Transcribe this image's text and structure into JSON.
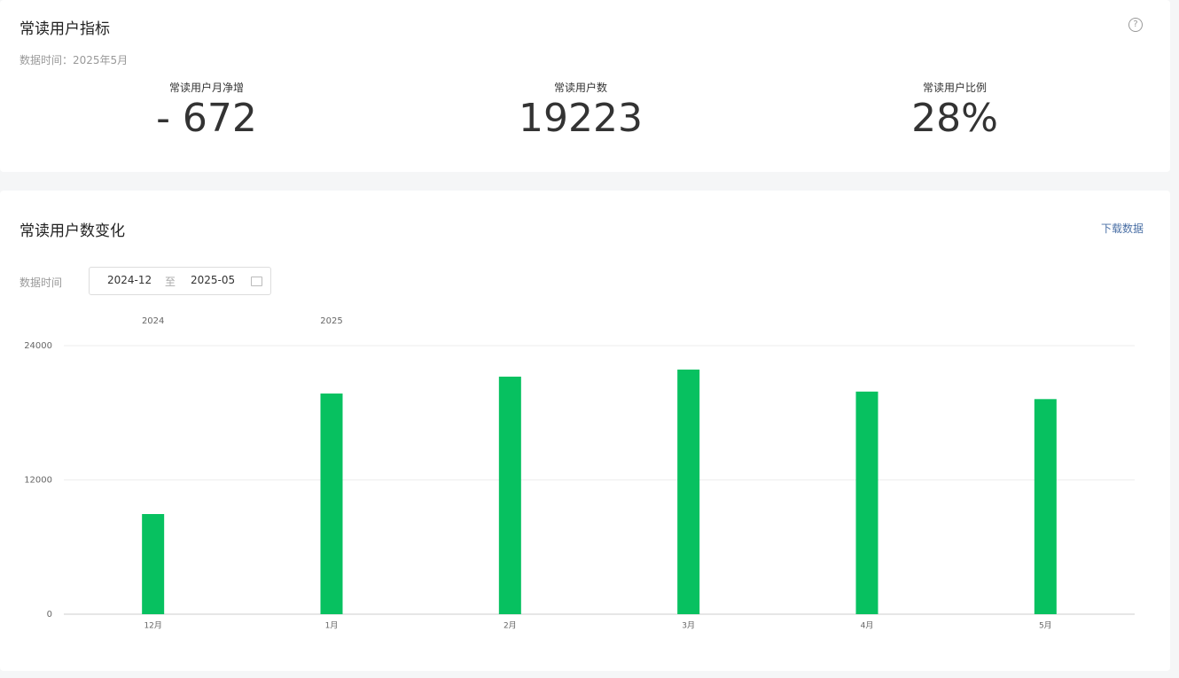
{
  "header": {
    "title": "常读用户指标",
    "subtitle": "数据时间：2025年5月"
  },
  "metrics": [
    {
      "label": "常读用户月净增",
      "value": "- 672"
    },
    {
      "label": "常读用户数",
      "value": "19223"
    },
    {
      "label": "常读用户比例",
      "value": "28%"
    }
  ],
  "trend": {
    "title": "常读用户数变化",
    "download": "下载数据",
    "date_label": "数据时间",
    "date_start": "2024-12",
    "date_sep": "至",
    "date_end": "2025-05"
  },
  "chart_data": {
    "type": "bar",
    "categories": [
      "12月",
      "1月",
      "2月",
      "3月",
      "4月",
      "5月"
    ],
    "year_labels": [
      "2024",
      "2025",
      null,
      null,
      null,
      null
    ],
    "values": [
      8950,
      19720,
      21230,
      21860,
      19895,
      19223
    ],
    "color": "#07c160",
    "ylim": [
      0,
      24000
    ],
    "yticks": [
      0,
      12000,
      24000
    ],
    "grid": true
  }
}
